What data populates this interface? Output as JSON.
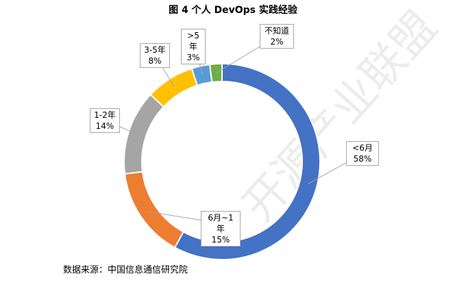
{
  "chart_data": {
    "type": "pie",
    "variant": "donut",
    "title": "图 4 个人 DevOps 实践经验",
    "slices": [
      {
        "label": "<6月",
        "value": 58,
        "display": "58%",
        "color": "#4472c4"
      },
      {
        "label": "6月~1年",
        "value": 15,
        "display": "15%",
        "color": "#ed7d31"
      },
      {
        "label": "1-2年",
        "value": 14,
        "display": "14%",
        "color": "#a5a5a5"
      },
      {
        "label": "3-5年",
        "value": 8,
        "display": "8%",
        "color": "#ffc000"
      },
      {
        "label": ">5年",
        "value": 3,
        "display": "3%",
        "color": "#5b9bd5"
      },
      {
        "label": "不知道",
        "value": 2,
        "display": "2%",
        "color": "#70ad47"
      }
    ],
    "legend": "none"
  },
  "source": "数据来源：中国信息通信研究院",
  "watermark": "开源产业联盟"
}
